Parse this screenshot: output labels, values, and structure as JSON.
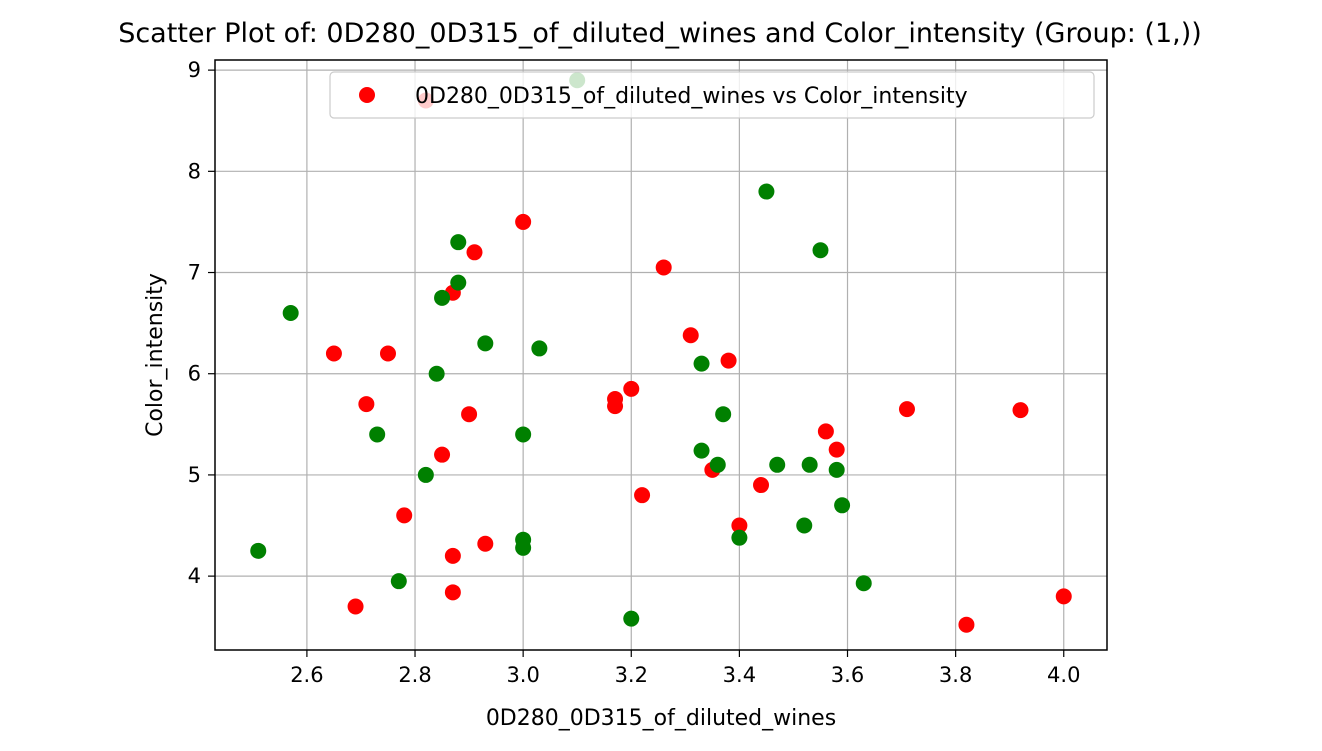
{
  "chart_data": {
    "type": "scatter",
    "title": "Scatter Plot of: 0D280_0D315_of_diluted_wines and Color_intensity (Group: (1,))",
    "xlabel": "0D280_0D315_of_diluted_wines",
    "ylabel": "Color_intensity",
    "xlim": [
      2.43,
      4.08
    ],
    "ylim": [
      3.27,
      9.1
    ],
    "xticks": [
      2.6,
      2.8,
      3.0,
      3.2,
      3.4,
      3.6,
      3.8,
      4.0
    ],
    "xtick_labels": [
      "2.6",
      "2.8",
      "3.0",
      "3.2",
      "3.4",
      "3.6",
      "3.8",
      "4.0"
    ],
    "yticks": [
      4,
      5,
      6,
      7,
      8,
      9
    ],
    "ytick_labels": [
      "4",
      "5",
      "6",
      "7",
      "8",
      "9"
    ],
    "grid": true,
    "legend_position": "top-right",
    "series": [
      {
        "name": "0D280_0D315_of_diluted_wines vs Color_intensity",
        "color": "#ff0000",
        "points": [
          [
            2.82,
            8.7
          ],
          [
            3.0,
            7.5
          ],
          [
            2.91,
            7.2
          ],
          [
            3.26,
            7.05
          ],
          [
            2.87,
            6.8
          ],
          [
            3.31,
            6.38
          ],
          [
            2.65,
            6.2
          ],
          [
            2.75,
            6.2
          ],
          [
            3.38,
            6.13
          ],
          [
            3.2,
            5.85
          ],
          [
            3.17,
            5.75
          ],
          [
            3.17,
            5.68
          ],
          [
            2.71,
            5.7
          ],
          [
            3.71,
            5.65
          ],
          [
            3.92,
            5.64
          ],
          [
            2.9,
            5.6
          ],
          [
            3.56,
            5.43
          ],
          [
            3.58,
            5.25
          ],
          [
            2.85,
            5.2
          ],
          [
            3.35,
            5.05
          ],
          [
            3.44,
            4.9
          ],
          [
            3.22,
            4.8
          ],
          [
            2.78,
            4.6
          ],
          [
            3.4,
            4.5
          ],
          [
            2.93,
            4.32
          ],
          [
            2.87,
            4.2
          ],
          [
            2.87,
            3.84
          ],
          [
            4.0,
            3.8
          ],
          [
            2.69,
            3.7
          ],
          [
            3.82,
            3.52
          ]
        ]
      },
      {
        "name": "",
        "color": "#008000",
        "points": [
          [
            3.1,
            8.9
          ],
          [
            3.45,
            7.8
          ],
          [
            2.88,
            7.3
          ],
          [
            3.55,
            7.22
          ],
          [
            2.88,
            6.9
          ],
          [
            2.85,
            6.75
          ],
          [
            2.57,
            6.6
          ],
          [
            2.93,
            6.3
          ],
          [
            3.03,
            6.25
          ],
          [
            3.33,
            6.1
          ],
          [
            2.84,
            6.0
          ],
          [
            3.37,
            5.6
          ],
          [
            2.73,
            5.4
          ],
          [
            3.0,
            5.4
          ],
          [
            3.33,
            5.24
          ],
          [
            3.36,
            5.1
          ],
          [
            3.47,
            5.1
          ],
          [
            3.53,
            5.1
          ],
          [
            3.58,
            5.05
          ],
          [
            2.82,
            5.0
          ],
          [
            3.59,
            4.7
          ],
          [
            3.52,
            4.5
          ],
          [
            3.4,
            4.38
          ],
          [
            3.0,
            4.36
          ],
          [
            3.0,
            4.28
          ],
          [
            2.51,
            4.25
          ],
          [
            2.77,
            3.95
          ],
          [
            3.63,
            3.93
          ],
          [
            3.2,
            3.58
          ]
        ]
      }
    ]
  }
}
